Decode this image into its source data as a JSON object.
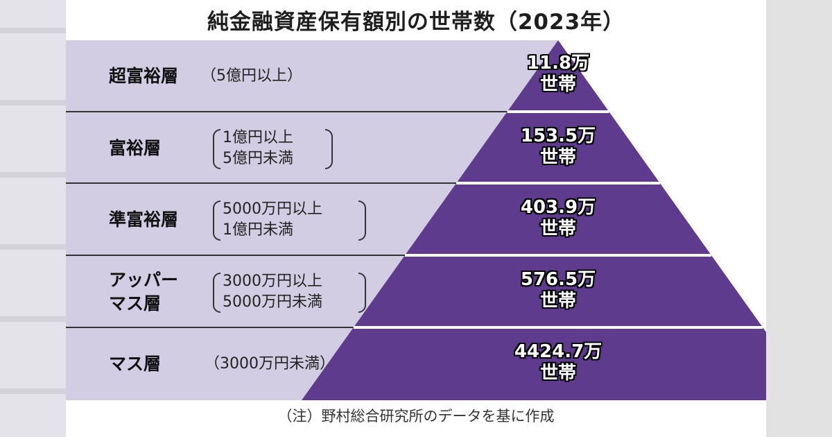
{
  "chart_data": {
    "type": "bar",
    "title": "純金融資産保有額別の世帯数（2023年）",
    "categories": [
      "超富裕層",
      "富裕層",
      "準富裕層",
      "アッパーマス層",
      "マス層"
    ],
    "rows": [
      {
        "label": [
          "超富裕層"
        ],
        "range": [
          "（5億円以上）"
        ],
        "value": 11.8,
        "value_text": "11.8万",
        "unit_text": "世帯"
      },
      {
        "label": [
          "富裕層"
        ],
        "range": [
          "1億円以上",
          "5億円未満"
        ],
        "value": 153.5,
        "value_text": "153.5万",
        "unit_text": "世帯"
      },
      {
        "label": [
          "準富裕層"
        ],
        "range": [
          "5000万円以上",
          "1億円未満"
        ],
        "value": 403.9,
        "value_text": "403.9万",
        "unit_text": "世帯"
      },
      {
        "label": [
          "アッパー",
          "マス層"
        ],
        "range": [
          "3000万円以上",
          "5000万円未満"
        ],
        "value": 576.5,
        "value_text": "576.5万",
        "unit_text": "世帯"
      },
      {
        "label": [
          "マス層"
        ],
        "range": [
          "（3000万円未満）"
        ],
        "value": 4424.7,
        "value_text": "4424.7万",
        "unit_text": "世帯"
      }
    ],
    "note": "（注）野村総合研究所のデータを基に作成",
    "colors": {
      "pyramid": "#5e3b8c",
      "band": "#d3cde3",
      "line": "#333333"
    }
  }
}
